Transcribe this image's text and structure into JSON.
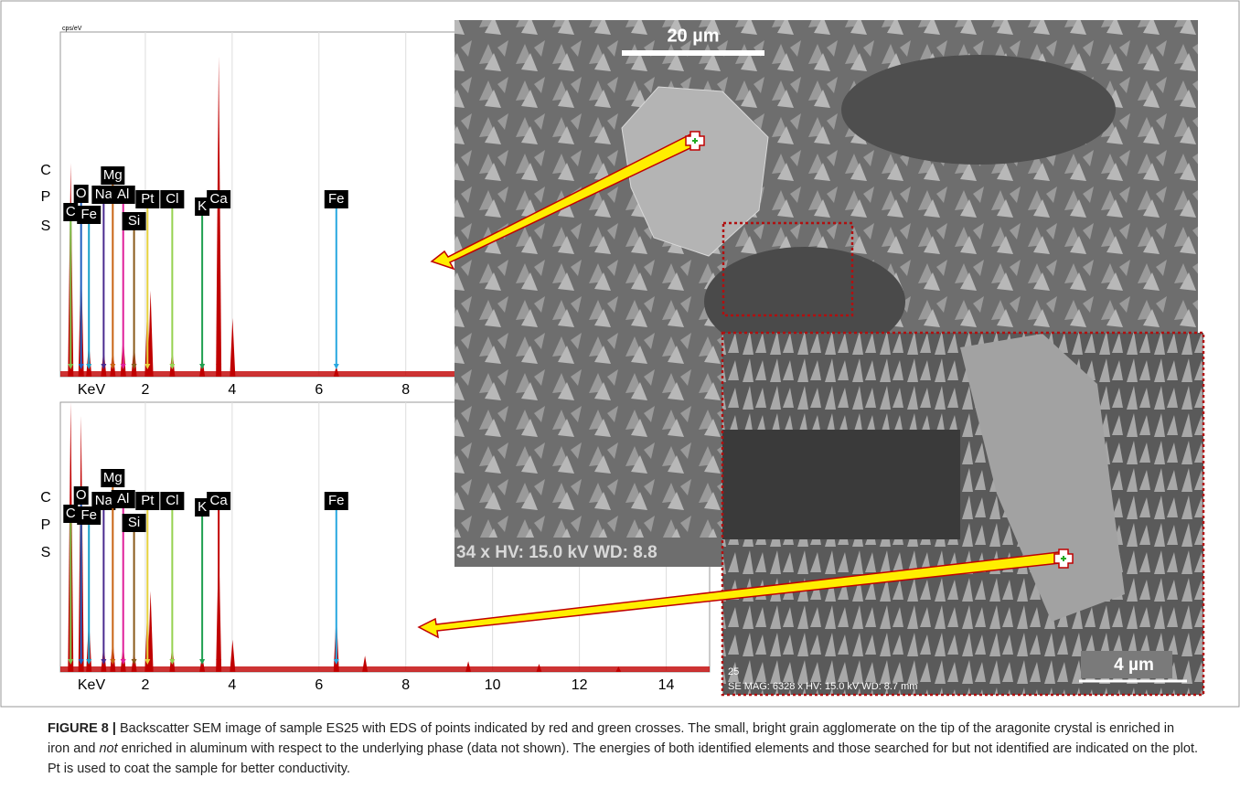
{
  "chart_data": [
    {
      "type": "spectrum",
      "y_label": "cps/eV",
      "y_letters": [
        "C",
        "P",
        "S"
      ],
      "x_label": "KeV",
      "xlim": [
        0,
        15
      ],
      "ylim": [
        0,
        100
      ],
      "xticks": [
        2,
        4,
        6,
        8
      ],
      "grid": true,
      "color": "#c00000",
      "peaks": {
        "x": [
          0.28,
          0.52,
          0.7,
          1.04,
          1.25,
          1.49,
          1.74,
          2.05,
          2.12,
          2.62,
          3.31,
          3.69,
          4.01,
          6.4
        ],
        "values": [
          62,
          35,
          10,
          8,
          8,
          12,
          10,
          22,
          25,
          8,
          6,
          93,
          17,
          3
        ]
      },
      "elements": [
        {
          "label": "C",
          "energy": 0.28,
          "color": "#7cc04b"
        },
        {
          "label": "O",
          "energy": 0.52,
          "color": "#1f5fbf"
        },
        {
          "label": "Fe",
          "energy": 0.7,
          "color": "#19a0c8"
        },
        {
          "label": "Na",
          "energy": 1.04,
          "color": "#4b2a8f"
        },
        {
          "label": "Mg",
          "energy": 1.25,
          "color": "#c86414"
        },
        {
          "label": "Al",
          "energy": 1.49,
          "color": "#e0209a"
        },
        {
          "label": "Si",
          "energy": 1.74,
          "color": "#8a5a1a"
        },
        {
          "label": "Pt",
          "energy": 2.05,
          "color": "#e6d23c"
        },
        {
          "label": "Cl",
          "energy": 2.62,
          "color": "#96d250"
        },
        {
          "label": "K",
          "energy": 3.31,
          "color": "#1ea050"
        },
        {
          "label": "Ca",
          "energy": 3.69,
          "color": "#c00000"
        },
        {
          "label": "Fe",
          "energy": 6.4,
          "color": "#28a8e0"
        }
      ]
    },
    {
      "type": "spectrum",
      "y_letters": [
        "C",
        "P",
        "S"
      ],
      "x_label": "KeV",
      "xlim": [
        0,
        15
      ],
      "ylim": [
        0,
        100
      ],
      "xticks": [
        2,
        4,
        6,
        8,
        10,
        12,
        14
      ],
      "grid": true,
      "color": "#c00000",
      "peaks": {
        "x": [
          0.28,
          0.52,
          0.7,
          1.04,
          1.25,
          1.49,
          1.74,
          2.05,
          2.12,
          2.62,
          3.31,
          3.69,
          4.01,
          6.4,
          7.06,
          9.44,
          11.07,
          12.9
        ],
        "values": [
          100,
          95,
          20,
          10,
          12,
          10,
          8,
          25,
          30,
          10,
          6,
          50,
          12,
          22,
          6,
          4,
          3,
          2
        ]
      },
      "elements": [
        {
          "label": "C",
          "energy": 0.28,
          "color": "#7cc04b"
        },
        {
          "label": "O",
          "energy": 0.52,
          "color": "#1f5fbf"
        },
        {
          "label": "Fe",
          "energy": 0.7,
          "color": "#19a0c8"
        },
        {
          "label": "Na",
          "energy": 1.04,
          "color": "#4b2a8f"
        },
        {
          "label": "Mg",
          "energy": 1.25,
          "color": "#c86414"
        },
        {
          "label": "Al",
          "energy": 1.49,
          "color": "#e0209a"
        },
        {
          "label": "Si",
          "energy": 1.74,
          "color": "#8a5a1a"
        },
        {
          "label": "Pt",
          "energy": 2.05,
          "color": "#e6d23c"
        },
        {
          "label": "Cl",
          "energy": 2.62,
          "color": "#96d250"
        },
        {
          "label": "K",
          "energy": 3.31,
          "color": "#1ea050"
        },
        {
          "label": "Ca",
          "energy": 3.69,
          "color": "#c00000"
        },
        {
          "label": "Fe",
          "energy": 6.4,
          "color": "#28a8e0"
        }
      ]
    }
  ],
  "sem_main": {
    "scale": "20 µm",
    "info": "34 x HV: 15.0 kV WD: 8.8"
  },
  "sem_inset": {
    "number": "25",
    "info": "SE MAG: 6328 x HV: 15.0 kV WD: 8.7 mm",
    "scale": "4 µm"
  },
  "caption": {
    "label": "FIGURE 8 |",
    "text_1": "Backscatter SEM image of sample ES25 with EDS of points indicated by red and green crosses. The small, bright grain agglomerate on the tip of the aragonite crystal is enriched in iron and ",
    "emphasis": "not",
    "text_2": " enriched in aluminum with respect to the underlying phase (data not shown). The energies of both identified elements and those searched for but not identified are indicated on the plot. Pt is used to coat the sample for better conductivity."
  }
}
